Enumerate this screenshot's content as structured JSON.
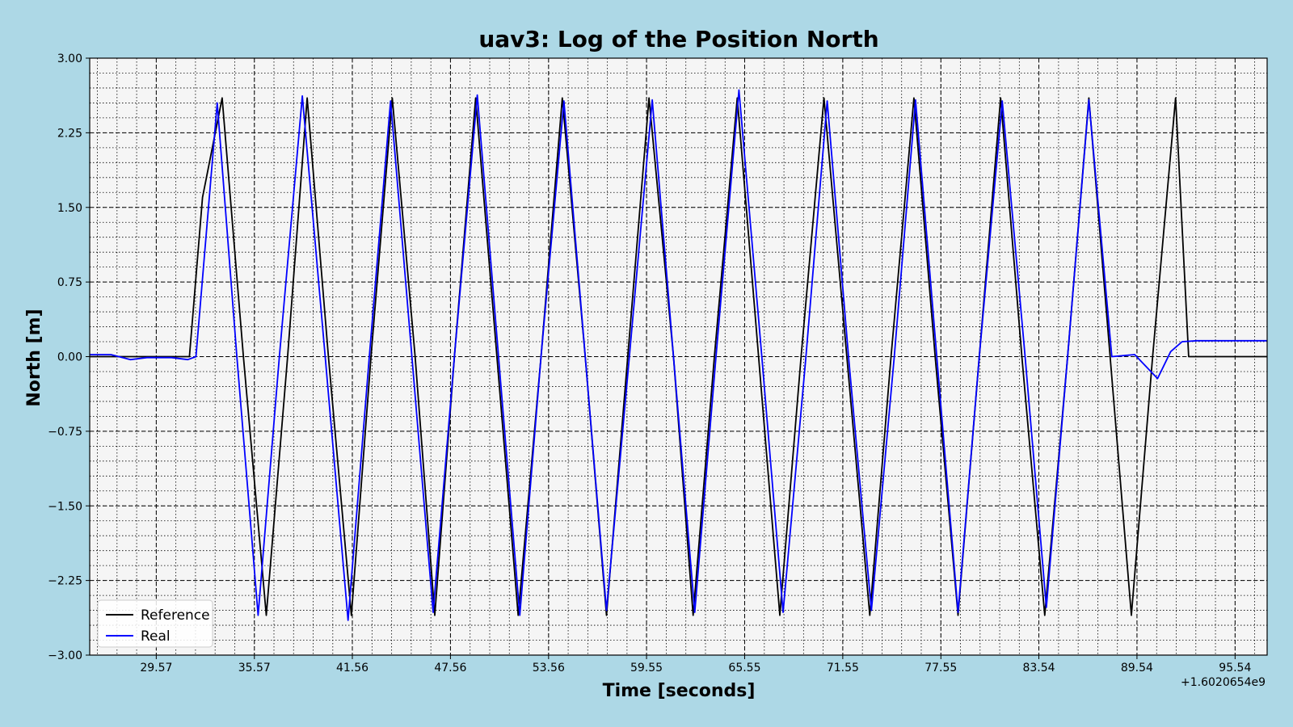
{
  "chart_data": {
    "type": "line",
    "title": "uav3: Log of the Position North",
    "xlabel": "Time [seconds]",
    "ylabel": "North [m]",
    "x_offset_label": "+1.6020654e9",
    "xlim": [
      25.5,
      97.5
    ],
    "ylim": [
      -3.0,
      3.0
    ],
    "xticks": [
      29.57,
      35.57,
      41.56,
      47.56,
      53.56,
      59.55,
      65.55,
      71.55,
      77.55,
      83.54,
      89.54,
      95.54
    ],
    "xtick_labels": [
      "29.57",
      "35.57",
      "41.56",
      "47.56",
      "53.56",
      "59.55",
      "65.55",
      "71.55",
      "77.55",
      "83.54",
      "89.54",
      "95.54"
    ],
    "yticks": [
      -3.0,
      -2.25,
      -1.5,
      -0.75,
      0.0,
      0.75,
      1.5,
      2.25,
      3.0
    ],
    "ytick_labels": [
      "−3.00",
      "−2.25",
      "−1.50",
      "−0.75",
      "0.00",
      "0.75",
      "1.50",
      "2.25",
      "3.00"
    ],
    "grid": true,
    "legend_position": "lower-left",
    "series": [
      {
        "name": "Reference",
        "color": "#000000",
        "x": [
          25.5,
          31.6,
          32.4,
          33.6,
          34.9,
          36.3,
          37.6,
          38.8,
          40.1,
          41.5,
          42.7,
          44.0,
          45.4,
          46.6,
          47.8,
          49.1,
          50.4,
          51.7,
          53.1,
          54.4,
          55.8,
          57.1,
          58.4,
          59.7,
          61.2,
          62.4,
          63.7,
          65.1,
          66.4,
          67.7,
          69.0,
          70.4,
          71.8,
          73.2,
          74.5,
          75.9,
          77.2,
          78.6,
          79.9,
          81.2,
          82.5,
          83.9,
          85.3,
          86.6,
          87.9,
          89.2,
          90.5,
          91.9,
          92.7,
          97.5
        ],
        "y": [
          0.0,
          0.0,
          1.6,
          2.6,
          0.0,
          -2.6,
          0.0,
          2.6,
          0.0,
          -2.6,
          0.0,
          2.6,
          0.0,
          -2.6,
          0.0,
          2.6,
          0.0,
          -2.6,
          0.0,
          2.6,
          0.0,
          -2.6,
          0.0,
          2.6,
          0.0,
          -2.6,
          0.0,
          2.6,
          0.0,
          -2.6,
          0.0,
          2.6,
          0.0,
          -2.6,
          0.0,
          2.6,
          0.0,
          -2.6,
          0.0,
          2.6,
          0.0,
          -2.6,
          0.0,
          2.6,
          0.0,
          -2.6,
          0.0,
          2.6,
          0.0,
          0.0
        ]
      },
      {
        "name": "Real",
        "color": "#0000ff",
        "x": [
          25.5,
          26.8,
          28.0,
          29.0,
          30.5,
          31.5,
          32.0,
          33.3,
          34.5,
          35.8,
          37.1,
          38.5,
          39.9,
          41.3,
          42.6,
          43.9,
          45.2,
          46.5,
          47.8,
          49.2,
          50.5,
          51.8,
          53.1,
          54.5,
          55.8,
          57.1,
          58.5,
          59.9,
          61.2,
          62.5,
          63.8,
          65.2,
          66.6,
          67.9,
          69.3,
          70.6,
          71.9,
          73.3,
          74.7,
          76.0,
          77.3,
          78.6,
          79.9,
          81.3,
          82.7,
          84.0,
          85.3,
          86.6,
          88.0,
          89.4,
          90.8,
          91.6,
          92.3,
          93.2,
          94.2,
          95.0,
          97.5
        ],
        "y": [
          0.02,
          0.02,
          -0.03,
          -0.01,
          -0.01,
          -0.03,
          0.0,
          2.55,
          0.0,
          -2.6,
          0.0,
          2.62,
          0.0,
          -2.65,
          0.0,
          2.57,
          0.0,
          -2.57,
          0.0,
          2.63,
          0.0,
          -2.6,
          0.0,
          2.57,
          0.0,
          -2.55,
          0.0,
          2.58,
          0.0,
          -2.57,
          0.0,
          2.68,
          0.0,
          -2.57,
          0.0,
          2.57,
          0.0,
          -2.55,
          0.0,
          2.58,
          0.0,
          -2.57,
          0.0,
          2.57,
          0.0,
          -2.52,
          0.0,
          2.58,
          0.0,
          0.02,
          -0.22,
          0.05,
          0.15,
          0.16,
          0.16,
          0.16,
          0.16
        ]
      }
    ]
  }
}
